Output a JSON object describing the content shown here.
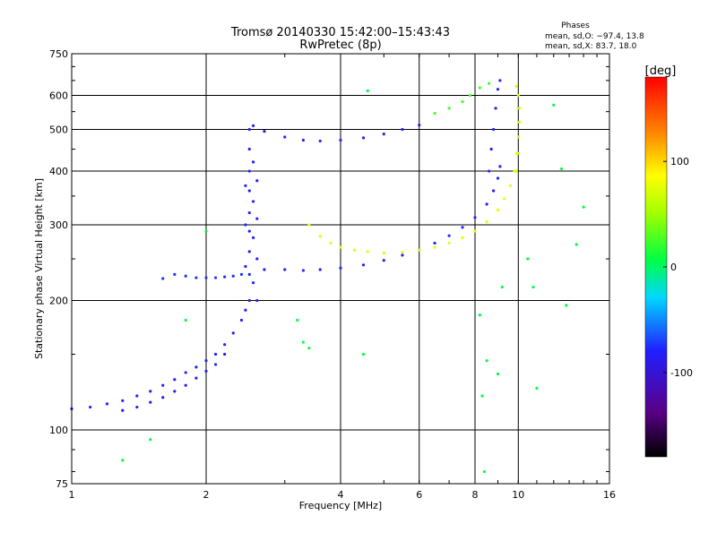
{
  "chart_data": {
    "type": "scatter",
    "title": "Tromsø 20140330 15:42:00–15:43:43",
    "subtitle": "RwPretec (8p)",
    "xlabel": "Frequency [MHz]",
    "ylabel": "Stationary phase Virtual Height [km]",
    "x_scale": "log",
    "y_scale": "log",
    "xlim": [
      1,
      16
    ],
    "ylim": [
      75,
      750
    ],
    "x_ticks": [
      1,
      2,
      4,
      6,
      8,
      10,
      16
    ],
    "y_ticks": [
      75,
      100,
      200,
      300,
      400,
      500,
      600,
      750
    ],
    "grid": true,
    "phases_info": {
      "heading": "Phases",
      "line_o": "mean, sd,O: −97.4, 13.8",
      "line_x": "mean, sd,X:  83.7, 18.0"
    },
    "colorbar": {
      "label": "[deg]",
      "range": [
        -180,
        180
      ],
      "ticks": [
        100,
        0,
        -100
      ]
    },
    "series": [
      {
        "trace": "o_low_layer",
        "color_phase": -100,
        "points": [
          [
            1.0,
            112
          ],
          [
            1.1,
            113
          ],
          [
            1.2,
            115
          ],
          [
            1.3,
            117
          ],
          [
            1.4,
            120
          ],
          [
            1.5,
            123
          ],
          [
            1.6,
            127
          ],
          [
            1.7,
            131
          ],
          [
            1.8,
            136
          ],
          [
            1.9,
            140
          ],
          [
            2.0,
            145
          ],
          [
            2.1,
            150
          ],
          [
            2.2,
            158
          ],
          [
            2.3,
            168
          ],
          [
            2.4,
            180
          ],
          [
            2.45,
            190
          ]
        ]
      },
      {
        "trace": "o_low_layer_secondary",
        "color_phase": -105,
        "points": [
          [
            1.3,
            111
          ],
          [
            1.4,
            113
          ],
          [
            1.5,
            116
          ],
          [
            1.6,
            119
          ],
          [
            1.7,
            123
          ],
          [
            1.8,
            127
          ],
          [
            1.9,
            132
          ],
          [
            2.0,
            137
          ],
          [
            2.1,
            142
          ],
          [
            2.2,
            150
          ]
        ]
      },
      {
        "trace": "o_f1_spread",
        "color_phase": -100,
        "points": [
          [
            2.5,
            200
          ],
          [
            2.5,
            230
          ],
          [
            2.5,
            260
          ],
          [
            2.5,
            290
          ],
          [
            2.5,
            320
          ],
          [
            2.5,
            360
          ],
          [
            2.5,
            400
          ],
          [
            2.5,
            450
          ],
          [
            2.5,
            500
          ],
          [
            2.55,
            220
          ],
          [
            2.55,
            280
          ],
          [
            2.55,
            340
          ],
          [
            2.55,
            420
          ],
          [
            2.6,
            200
          ],
          [
            2.6,
            250
          ],
          [
            2.6,
            310
          ],
          [
            2.6,
            380
          ],
          [
            2.45,
            240
          ],
          [
            2.45,
            300
          ],
          [
            2.45,
            370
          ]
        ]
      },
      {
        "trace": "o_low_f_trace",
        "color_phase": -95,
        "points": [
          [
            1.6,
            225
          ],
          [
            1.7,
            230
          ],
          [
            1.8,
            228
          ],
          [
            1.9,
            226
          ],
          [
            2.0,
            226
          ],
          [
            2.1,
            226
          ],
          [
            2.2,
            227
          ],
          [
            2.3,
            228
          ],
          [
            2.4,
            230
          ]
        ]
      },
      {
        "trace": "o_f2_trace",
        "color_phase": -100,
        "points": [
          [
            2.7,
            236
          ],
          [
            3.0,
            236
          ],
          [
            3.3,
            235
          ],
          [
            3.6,
            236
          ],
          [
            4.0,
            238
          ],
          [
            4.5,
            242
          ],
          [
            5.0,
            248
          ],
          [
            5.5,
            255
          ],
          [
            6.0,
            262
          ],
          [
            6.5,
            272
          ],
          [
            7.0,
            283
          ],
          [
            7.5,
            296
          ],
          [
            8.0,
            312
          ],
          [
            8.5,
            335
          ],
          [
            8.8,
            360
          ],
          [
            9.0,
            385
          ],
          [
            9.1,
            410
          ]
        ]
      },
      {
        "trace": "o_upper_trace",
        "color_phase": -100,
        "points": [
          [
            2.55,
            510
          ],
          [
            2.7,
            495
          ],
          [
            3.0,
            480
          ],
          [
            3.3,
            472
          ],
          [
            3.6,
            470
          ],
          [
            4.0,
            472
          ],
          [
            4.5,
            478
          ],
          [
            5.0,
            488
          ],
          [
            5.5,
            500
          ],
          [
            6.0,
            512
          ]
        ]
      },
      {
        "trace": "x_f2_trace",
        "color_phase": 85,
        "points": [
          [
            3.4,
            300
          ],
          [
            3.6,
            282
          ],
          [
            3.8,
            272
          ],
          [
            4.0,
            266
          ],
          [
            4.3,
            262
          ],
          [
            4.6,
            260
          ],
          [
            5.0,
            258
          ],
          [
            5.5,
            259
          ],
          [
            6.0,
            262
          ],
          [
            6.5,
            266
          ],
          [
            7.0,
            272
          ],
          [
            7.5,
            280
          ],
          [
            8.0,
            290
          ],
          [
            8.5,
            305
          ],
          [
            9.0,
            325
          ],
          [
            9.3,
            345
          ],
          [
            9.6,
            370
          ],
          [
            9.8,
            400
          ],
          [
            9.9,
            440
          ]
        ]
      },
      {
        "trace": "x_cusp_trace",
        "color_phase": 75,
        "points": [
          [
            9.9,
            400
          ],
          [
            10.0,
            440
          ],
          [
            10.0,
            480
          ],
          [
            10.05,
            520
          ],
          [
            10.05,
            560
          ],
          [
            10.0,
            600
          ],
          [
            9.9,
            630
          ]
        ]
      },
      {
        "trace": "mixed_upper_trace",
        "color_phase": 20,
        "points": [
          [
            6.5,
            545
          ],
          [
            7.0,
            560
          ],
          [
            7.5,
            580
          ],
          [
            7.8,
            600
          ],
          [
            8.2,
            625
          ],
          [
            8.6,
            640
          ]
        ]
      },
      {
        "trace": "o_near_cusp",
        "color_phase": -100,
        "points": [
          [
            8.6,
            400
          ],
          [
            8.7,
            450
          ],
          [
            8.8,
            500
          ],
          [
            8.9,
            560
          ],
          [
            9.0,
            620
          ],
          [
            9.1,
            650
          ]
        ]
      },
      {
        "trace": "scattered_noise",
        "color_phase": 0,
        "points": [
          [
            1.3,
            85
          ],
          [
            1.5,
            95
          ],
          [
            1.8,
            180
          ],
          [
            2.0,
            290
          ],
          [
            3.2,
            180
          ],
          [
            3.3,
            160
          ],
          [
            3.4,
            155
          ],
          [
            4.5,
            150
          ],
          [
            4.6,
            615
          ],
          [
            8.2,
            185
          ],
          [
            8.3,
            120
          ],
          [
            8.4,
            80
          ],
          [
            8.5,
            145
          ],
          [
            9.0,
            135
          ],
          [
            9.2,
            215
          ],
          [
            10.5,
            250
          ],
          [
            10.8,
            215
          ],
          [
            11.0,
            125
          ],
          [
            12.0,
            570
          ],
          [
            12.5,
            405
          ],
          [
            12.8,
            195
          ],
          [
            13.5,
            270
          ],
          [
            14.0,
            330
          ]
        ]
      }
    ]
  }
}
